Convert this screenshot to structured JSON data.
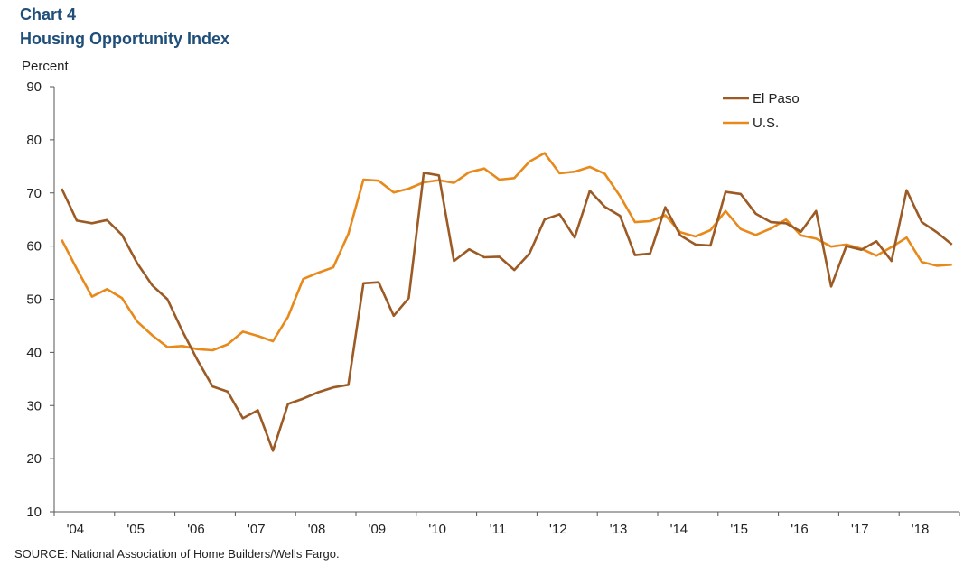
{
  "header": {
    "chart_label": "Chart 4",
    "title": "Housing Opportunity Index"
  },
  "footer": {
    "source": "SOURCE:  National Association of Home Builders/Wells Fargo."
  },
  "colors": {
    "el_paso": "#9c5a24",
    "us": "#e8891c",
    "axis": "#555555"
  },
  "chart_data": {
    "type": "line",
    "title": "Housing Opportunity Index",
    "ylabel": "Percent",
    "xlabel": "",
    "ylim": [
      10,
      90
    ],
    "yticks": [
      10,
      20,
      30,
      40,
      50,
      60,
      70,
      80,
      90
    ],
    "grid": false,
    "legend": "top-right",
    "x_tick_labels": [
      "'04",
      "'05",
      "'06",
      "'07",
      "'08",
      "'09",
      "'10",
      "'11",
      "'12",
      "'13",
      "'14",
      "'15",
      "'16",
      "'17",
      "'18"
    ],
    "series": [
      {
        "name": "El Paso",
        "color": "#9c5a24",
        "values": [
          70.8,
          64.8,
          64.3,
          64.9,
          62.1,
          56.8,
          52.6,
          50.0,
          44.0,
          38.5,
          33.6,
          32.6,
          27.6,
          29.1,
          21.5,
          30.3,
          31.3,
          32.5,
          33.4,
          33.9,
          53.0,
          53.2,
          46.9,
          50.2,
          73.8,
          73.3,
          57.2,
          59.4,
          57.9,
          58.0,
          55.5,
          58.6,
          65.0,
          66.0,
          61.6,
          70.4,
          67.4,
          65.7,
          58.3,
          58.6,
          67.3,
          62.0,
          60.3,
          60.1,
          70.2,
          69.8,
          66.1,
          64.5,
          64.3,
          62.7,
          66.6,
          52.4,
          60.0,
          59.3,
          60.9,
          57.2,
          70.5,
          64.5,
          62.6,
          60.3
        ]
      },
      {
        "name": "U.S.",
        "color": "#e8891c",
        "values": [
          61.2,
          55.7,
          50.5,
          51.9,
          50.2,
          45.8,
          43.2,
          41.0,
          41.2,
          40.6,
          40.4,
          41.5,
          43.9,
          43.1,
          42.1,
          46.7,
          53.8,
          55.0,
          56.0,
          62.3,
          72.5,
          72.3,
          70.1,
          70.8,
          72.0,
          72.4,
          71.9,
          73.9,
          74.6,
          72.5,
          72.8,
          75.9,
          77.5,
          73.7,
          74.0,
          74.9,
          73.6,
          69.4,
          64.5,
          64.7,
          65.8,
          62.6,
          61.8,
          63.0,
          66.6,
          63.2,
          62.1,
          63.3,
          65.0,
          62.0,
          61.4,
          59.9,
          60.3,
          59.5,
          58.2,
          59.8,
          61.6,
          57.0,
          56.3,
          56.5
        ]
      }
    ]
  }
}
